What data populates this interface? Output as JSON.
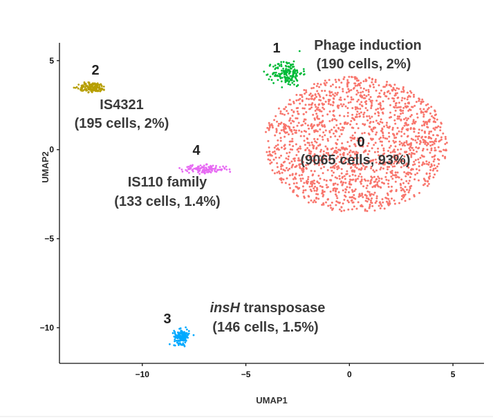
{
  "chart_data": {
    "type": "scatter",
    "title": "",
    "xlabel": "UMAP1",
    "ylabel": "UMAP2",
    "xlim": [
      -14,
      6.5
    ],
    "ylim": [
      -12,
      6
    ],
    "xticks": [
      -10,
      -5,
      0,
      5
    ],
    "yticks": [
      5,
      0,
      -5,
      -10
    ],
    "xtick_labels": [
      "−10",
      "−5",
      "0",
      "5"
    ],
    "ytick_labels": [
      "5",
      "0",
      "−5",
      "−10"
    ],
    "grid": false,
    "clusters": [
      {
        "id": "0",
        "name": "0",
        "color": "#F8766D",
        "cells": 9065,
        "percent": "93%",
        "label_line1": "0",
        "label_line2": "(9065 cells, 93%)",
        "center": [
          0.3,
          0.3
        ],
        "radius": [
          4.5,
          3.9
        ]
      },
      {
        "id": "1",
        "name": "Phage induction",
        "color": "#00BA38",
        "cells": 190,
        "percent": "2%",
        "label_id": "1",
        "label_line1": "Phage induction",
        "label_line2": "(190 cells, 2%)",
        "center": [
          -3.0,
          4.3
        ],
        "radius": [
          0.8,
          0.8
        ]
      },
      {
        "id": "2",
        "name": "IS4321",
        "color": "#B79F00",
        "cells": 195,
        "percent": "2%",
        "label_id": "2",
        "label_line1": "IS4321",
        "label_line2": "(195 cells, 2%)",
        "center": [
          -12.4,
          3.5
        ],
        "radius": [
          0.75,
          0.3
        ]
      },
      {
        "id": "3",
        "name": "insH transposase",
        "color": "#00A9FF",
        "cells": 146,
        "percent": "1.5%",
        "label_id": "3",
        "label_line1_italic": "insH",
        "label_line1_rest": " transposase",
        "label_line2": "(146 cells, 1.5%)",
        "center": [
          -8.1,
          -10.5
        ],
        "radius": [
          0.4,
          0.45
        ]
      },
      {
        "id": "4",
        "name": "IS110 family",
        "color": "#E76BF3",
        "cells": 133,
        "percent": "1.4%",
        "label_id": "4",
        "label_line1": "IS110 family",
        "label_line2": "(133 cells, 1.4%)",
        "center": [
          -7.0,
          -1.1
        ],
        "radius": [
          1.2,
          0.25
        ]
      }
    ]
  }
}
